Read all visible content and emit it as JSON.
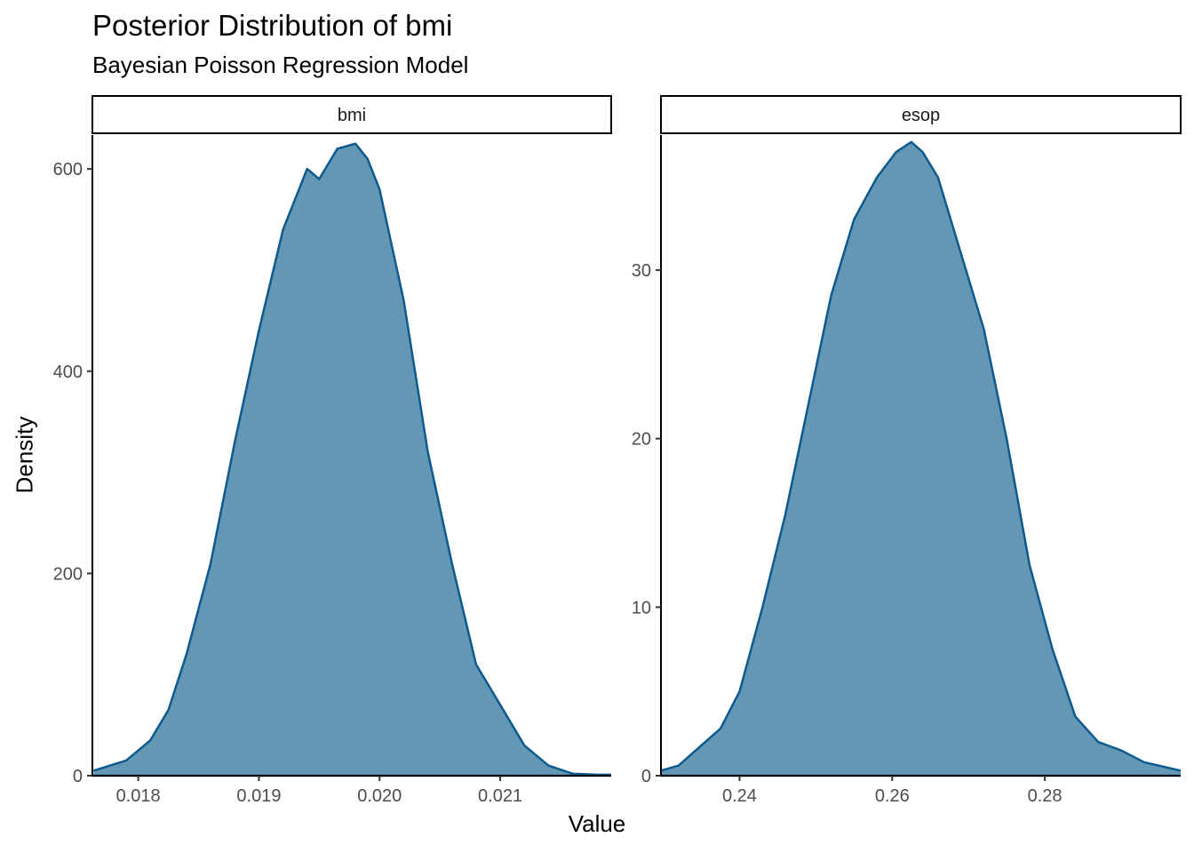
{
  "chart_data": {
    "type": "area",
    "title": "Posterior Distribution of bmi",
    "subtitle": "Bayesian Poisson Regression Model",
    "xlabel": "Value",
    "ylabel": "Density",
    "fill_color": "#6497b4",
    "line_color": "#0d5a8f",
    "facets": [
      {
        "label": "bmi",
        "xlim": [
          0.01762,
          0.02192
        ],
        "ylim": [
          0,
          630
        ],
        "xticks": [
          {
            "value": 0.018,
            "label": "0.018"
          },
          {
            "value": 0.019,
            "label": "0.019"
          },
          {
            "value": 0.02,
            "label": "0.020"
          },
          {
            "value": 0.021,
            "label": "0.021"
          }
        ],
        "yticks": [
          {
            "value": 0,
            "label": "0"
          },
          {
            "value": 200,
            "label": "200"
          },
          {
            "value": 400,
            "label": "400"
          },
          {
            "value": 600,
            "label": "600"
          }
        ],
        "x": [
          0.01763,
          0.0179,
          0.0181,
          0.01825,
          0.0184,
          0.0186,
          0.0188,
          0.019,
          0.0192,
          0.0194,
          0.0195,
          0.01965,
          0.0198,
          0.0199,
          0.02,
          0.0202,
          0.0204,
          0.0206,
          0.0208,
          0.021,
          0.0212,
          0.0214,
          0.0216,
          0.0218,
          0.02192
        ],
        "y": [
          5,
          15,
          35,
          65,
          120,
          210,
          330,
          440,
          540,
          600,
          590,
          620,
          625,
          610,
          580,
          470,
          320,
          210,
          110,
          70,
          30,
          10,
          2,
          1,
          1
        ]
      },
      {
        "label": "esop",
        "xlim": [
          0.2297,
          0.2978
        ],
        "ylim": [
          0,
          37.8
        ],
        "xticks": [
          {
            "value": 0.24,
            "label": "0.24"
          },
          {
            "value": 0.26,
            "label": "0.26"
          },
          {
            "value": 0.28,
            "label": "0.28"
          }
        ],
        "yticks": [
          {
            "value": 0,
            "label": "0"
          },
          {
            "value": 10,
            "label": "10"
          },
          {
            "value": 20,
            "label": "20"
          },
          {
            "value": 30,
            "label": "30"
          }
        ],
        "x": [
          0.2297,
          0.232,
          0.2345,
          0.2375,
          0.24,
          0.243,
          0.246,
          0.249,
          0.252,
          0.255,
          0.258,
          0.2605,
          0.2625,
          0.264,
          0.266,
          0.269,
          0.272,
          0.275,
          0.278,
          0.281,
          0.284,
          0.287,
          0.29,
          0.293,
          0.2978
        ],
        "y": [
          0.3,
          0.6,
          1.6,
          2.8,
          5.0,
          10.0,
          15.5,
          22.0,
          28.5,
          33.0,
          35.5,
          37.0,
          37.6,
          37.0,
          35.5,
          31.0,
          26.5,
          20.0,
          12.5,
          7.5,
          3.5,
          2.0,
          1.5,
          0.8,
          0.3
        ]
      }
    ]
  }
}
